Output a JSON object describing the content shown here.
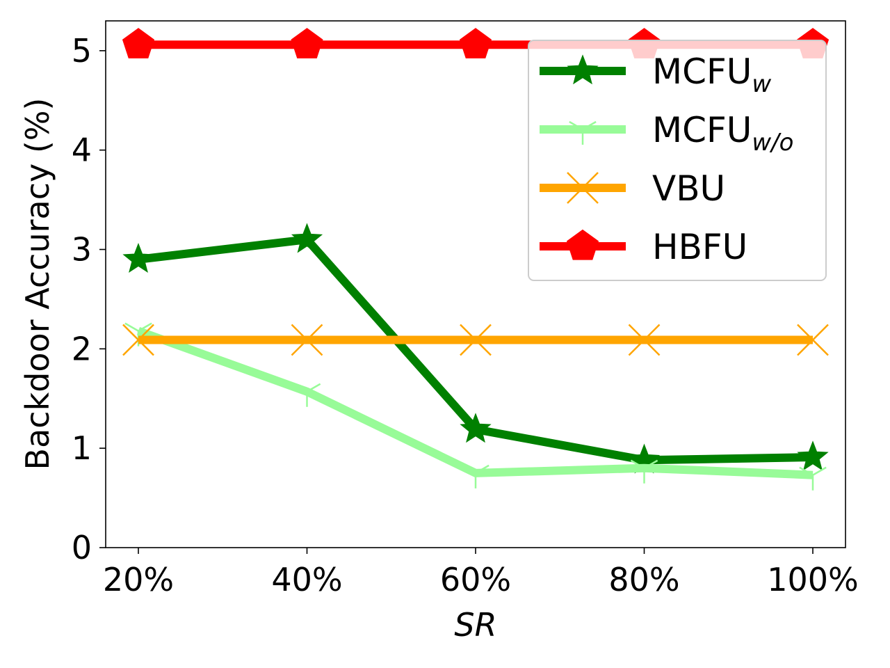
{
  "chart_data": {
    "type": "line",
    "x": [
      "20%",
      "40%",
      "60%",
      "80%",
      "100%"
    ],
    "xlabel": "SR",
    "ylabel": "Backdoor Accuracy (%)",
    "ylim": [
      0,
      5.3
    ],
    "yticks": [
      "0",
      "1",
      "2",
      "3",
      "4",
      "5"
    ],
    "grid": false,
    "legend_position": "top-right",
    "series": [
      {
        "name": "MCFU",
        "name_sub": "w",
        "color": "#008000",
        "marker": "star",
        "values": [
          2.9,
          3.1,
          1.19,
          0.88,
          0.91
        ]
      },
      {
        "name": "MCFU",
        "name_sub": "w/o",
        "color": "#98fb98",
        "marker": "tri-down",
        "values": [
          2.18,
          1.57,
          0.75,
          0.8,
          0.73
        ]
      },
      {
        "name": "VBU",
        "name_sub": "",
        "color": "#ffa500",
        "marker": "x",
        "values": [
          2.09,
          2.09,
          2.09,
          2.09,
          2.09
        ]
      },
      {
        "name": "HBFU",
        "name_sub": "",
        "color": "#ff0000",
        "marker": "pentagon",
        "values": [
          5.06,
          5.06,
          5.06,
          5.06,
          5.06
        ]
      }
    ]
  }
}
